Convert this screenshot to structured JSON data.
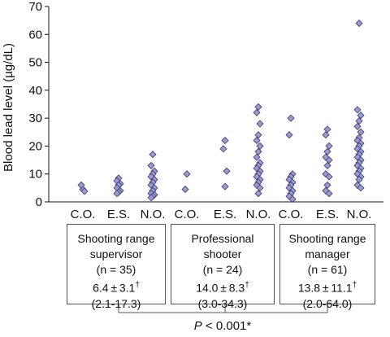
{
  "chart_data": {
    "type": "scatter",
    "ylabel": "Blood lead level (µg/dL)",
    "ylim": [
      0,
      70
    ],
    "yticks": [
      0,
      10,
      20,
      30,
      40,
      50,
      60,
      70
    ],
    "grid": false,
    "marker_color": "#9b9bd2",
    "marker_edge": "#3a3a6e",
    "categories": [
      "C.O.",
      "E.S.",
      "N.O.",
      "C.O.",
      "E.S.",
      "N.O.",
      "C.O.",
      "E.S.",
      "N.O."
    ],
    "points": [
      [
        4.5,
        6.0,
        3.8
      ],
      [
        8.5,
        7.5,
        6.5,
        6.0,
        5.0,
        4.0,
        3.5,
        3.0
      ],
      [
        17,
        13,
        11,
        10,
        9,
        8,
        7,
        6,
        5,
        4,
        3,
        2.5,
        2,
        1.5
      ],
      [
        10,
        4.5
      ],
      [
        22,
        19,
        11,
        5.5
      ],
      [
        34,
        32,
        28,
        24,
        22,
        20,
        18,
        16,
        14,
        13,
        12,
        11,
        10,
        9,
        8,
        7,
        6,
        5,
        3
      ],
      [
        30,
        24,
        10,
        9,
        8,
        7,
        6,
        5,
        4,
        3,
        2,
        1
      ],
      [
        26,
        24,
        20,
        18,
        16,
        15,
        13,
        10,
        9,
        6,
        4,
        3
      ],
      [
        64,
        33,
        31,
        29,
        27,
        25,
        23,
        22,
        21,
        20,
        19,
        18,
        17,
        16,
        15,
        14,
        13,
        12,
        11,
        10,
        9,
        8,
        6,
        5
      ]
    ]
  },
  "groups": [
    {
      "line1": "Shooting range",
      "line2": "supervisor",
      "n": "(n = 35)",
      "mean": "6.4 ± 3.1",
      "dagger": "†",
      "range": "(2.1-17.3)"
    },
    {
      "line1": "Professional",
      "line2": "shooter",
      "n": "(n = 24)",
      "mean": "14.0 ± 8.3",
      "dagger": "†",
      "range": "(3.0-34.3)"
    },
    {
      "line1": "Shooting range",
      "line2": "manager",
      "n": "(n = 61)",
      "mean": "13.8 ± 11.1",
      "dagger": "†",
      "range": "(2.0-64.0)"
    }
  ],
  "p_value": {
    "p": "P",
    "rest": " < 0.001*"
  }
}
